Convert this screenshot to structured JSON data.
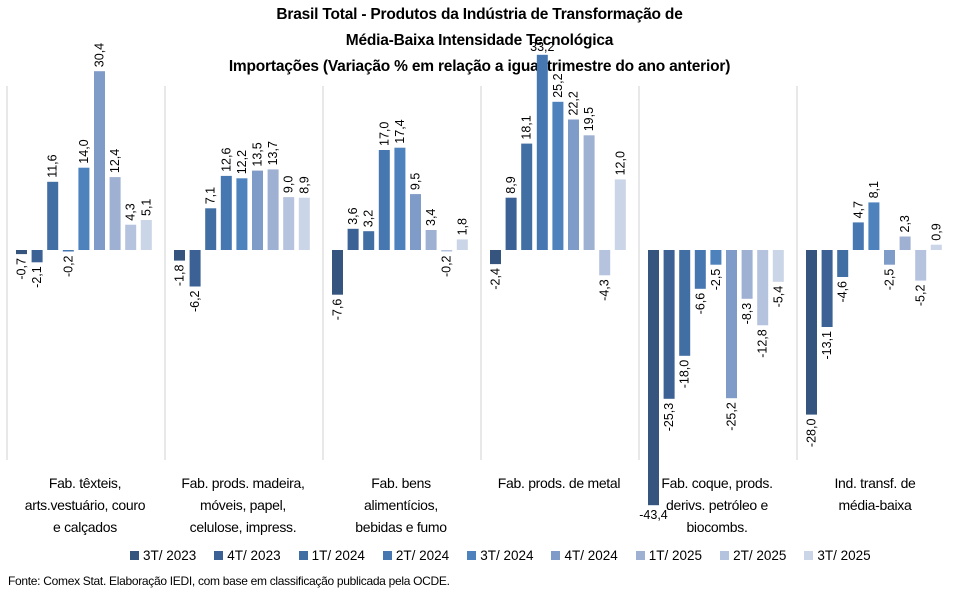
{
  "chart_data": {
    "type": "bar",
    "title": [
      "Brasil Total - Produtos da Indústria de Transformação  de",
      "Média-Baixa  Intensidade Tecnológica",
      "Importações  (Variação % em relação a igual  trimestre do ano anterior)"
    ],
    "xlabel": "",
    "ylabel": "",
    "ylim": [
      -43.4,
      33.2
    ],
    "grid": false,
    "legend_position": "bottom",
    "categories": [
      "Fab. têxteis, arts.vestuário, couro e calçados",
      "Fab. prods. madeira, móveis, papel, celulose, impress.",
      "Fab. bens alimentícios, bebidas e fumo",
      "Fab. prods. de metal",
      "Fab. coque, prods. derivs. petróleo e biocombs.",
      "Ind. transf. de média-baixa"
    ],
    "category_lines": [
      [
        "Fab. têxteis,",
        "arts.vestuário, couro",
        "e calçados"
      ],
      [
        "Fab. prods. madeira,",
        "móveis, papel,",
        "celulose, impress."
      ],
      [
        "Fab. bens",
        "alimentícios,",
        "bebidas e fumo"
      ],
      [
        "Fab. prods. de metal"
      ],
      [
        "Fab. coque, prods.",
        "derivs. petróleo e",
        "biocombs."
      ],
      [
        "Ind. transf. de",
        "média-baixa"
      ]
    ],
    "series": [
      {
        "name": "3T/ 2023",
        "color": "#35557f",
        "values": [
          -0.7,
          -1.8,
          -7.6,
          -2.4,
          -43.4,
          -28.0
        ],
        "labels": [
          "-0,7",
          "-1,8",
          "-7,6",
          "-2,4",
          "-43,4",
          "-28,0"
        ]
      },
      {
        "name": "4T/ 2023",
        "color": "#3c6194",
        "values": [
          -2.1,
          -6.2,
          3.6,
          8.9,
          -25.3,
          -13.1
        ],
        "labels": [
          "-2,1",
          "-6,2",
          "3,6",
          "8,9",
          "-25,3",
          "-13,1"
        ]
      },
      {
        "name": "1T/ 2024",
        "color": "#416ea3",
        "values": [
          11.6,
          7.1,
          3.2,
          18.1,
          -18.0,
          -4.6
        ],
        "labels": [
          "11,6",
          "7,1",
          "3,2",
          "18,1",
          "-18,0",
          "-4,6"
        ]
      },
      {
        "name": "2T/ 2024",
        "color": "#4777b0",
        "values": [
          -0.2,
          12.6,
          17.0,
          33.2,
          -6.6,
          4.7
        ],
        "labels": [
          "-0,2",
          "12,6",
          "17,0",
          "33,2",
          "-6,6",
          "4,7"
        ]
      },
      {
        "name": "3T/ 2024",
        "color": "#4d82bd",
        "values": [
          14.0,
          12.2,
          17.4,
          25.2,
          -2.5,
          8.1
        ],
        "labels": [
          "14,0",
          "12,2",
          "17,4",
          "25,2",
          "-2,5",
          "8,1"
        ]
      },
      {
        "name": "4T/ 2024",
        "color": "#7f9bc8",
        "values": [
          30.4,
          13.5,
          9.5,
          22.2,
          -25.2,
          -2.5
        ],
        "labels": [
          "30,4",
          "13,5",
          "9,5",
          "22,2",
          "-25,2",
          "-2,5"
        ]
      },
      {
        "name": "1T/ 2025",
        "color": "#9fb1d3",
        "values": [
          12.4,
          13.7,
          3.4,
          19.5,
          -8.3,
          2.3
        ],
        "labels": [
          "12,4",
          "13,7",
          "3,4",
          "19,5",
          "-8,3",
          "2,3"
        ]
      },
      {
        "name": "2T/ 2025",
        "color": "#b6c3de",
        "values": [
          4.3,
          9.0,
          -0.2,
          -4.3,
          -12.8,
          -5.2
        ],
        "labels": [
          "4,3",
          "9,0",
          "-0,2",
          "-4,3",
          "-12,8",
          "-5,2"
        ]
      },
      {
        "name": "3T/ 2025",
        "color": "#cbd5e8",
        "values": [
          5.1,
          8.9,
          1.8,
          12.0,
          -5.4,
          0.9
        ],
        "labels": [
          "5,1",
          "8,9",
          "1,8",
          "12,0",
          "-5,4",
          "0,9"
        ]
      }
    ]
  },
  "source_note": "Fonte: Comex Stat. Elaboração IEDI, com base em classificação publicada pela OCDE."
}
